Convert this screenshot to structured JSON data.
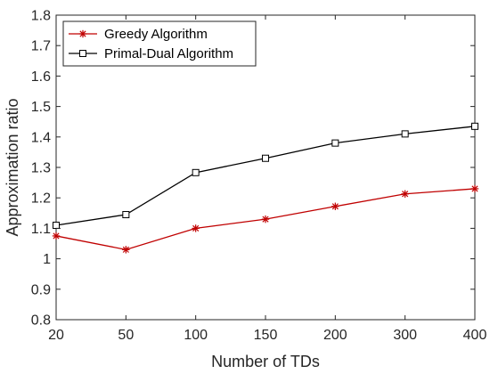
{
  "chart_data": {
    "type": "line",
    "title": "",
    "xlabel": "Number of TDs",
    "ylabel": "Approximation ratio",
    "categories": [
      "20",
      "50",
      "100",
      "150",
      "200",
      "300",
      "400"
    ],
    "ylim": [
      0.8,
      1.8
    ],
    "yticks": [
      "0.8",
      "0.9",
      "1",
      "1.1",
      "1.2",
      "1.3",
      "1.4",
      "1.5",
      "1.6",
      "1.7",
      "1.8"
    ],
    "grid": false,
    "legend_position": "top-left",
    "series": [
      {
        "name": "Greedy Algorithm",
        "values": [
          1.075,
          1.03,
          1.1,
          1.13,
          1.172,
          1.213,
          1.23
        ],
        "color": "#c00000",
        "marker": "asterisk"
      },
      {
        "name": "Primal-Dual Algorithm",
        "values": [
          1.11,
          1.145,
          1.283,
          1.33,
          1.38,
          1.41,
          1.435
        ],
        "color": "#000000",
        "marker": "square"
      }
    ]
  }
}
